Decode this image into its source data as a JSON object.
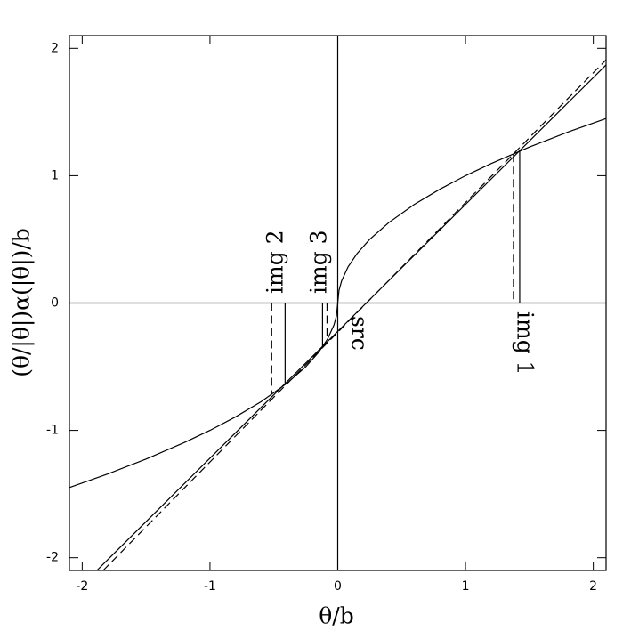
{
  "chart_data": {
    "type": "line",
    "xlabel": "θ/b",
    "ylabel": "(θ/|θ|)α(|θ|)/b",
    "xlim": [
      -2.1,
      2.1
    ],
    "ylim": [
      -2.1,
      2.1
    ],
    "xticks": [
      -2,
      -1,
      0,
      1,
      2
    ],
    "yticks": [
      -2,
      -1,
      0,
      1,
      2
    ],
    "color": "#000000",
    "lines": [
      {
        "style": "solid",
        "x": [
          -2.1,
          -1.8,
          -1.5,
          -1.2,
          -1.0,
          -0.8,
          -0.6,
          -0.4,
          -0.25,
          -0.15,
          -0.08,
          -0.03,
          -0.01,
          0,
          0.01,
          0.03,
          0.08,
          0.15,
          0.25,
          0.4,
          0.6,
          0.8,
          1.0,
          1.2,
          1.5,
          1.8,
          2.1
        ],
        "y": [
          -1.449,
          -1.342,
          -1.225,
          -1.095,
          -1.0,
          -0.894,
          -0.775,
          -0.632,
          -0.5,
          -0.387,
          -0.283,
          -0.173,
          -0.1,
          0,
          0.1,
          0.173,
          0.283,
          0.387,
          0.5,
          0.632,
          0.775,
          0.894,
          1.0,
          1.095,
          1.225,
          1.342,
          1.449
        ]
      },
      {
        "style": "solid",
        "x": [
          -1.885,
          2.1
        ],
        "y": [
          -2.1,
          1.87
        ]
      },
      {
        "style": "dashed",
        "x": [
          -1.836,
          2.1
        ],
        "y": [
          -2.1,
          1.91
        ]
      },
      {
        "style": "solid",
        "x": [
          -2.1,
          2.1
        ],
        "y": [
          0,
          0
        ]
      },
      {
        "style": "solid",
        "x": [
          0,
          0
        ],
        "y": [
          -2.1,
          2.1
        ]
      },
      {
        "style": "solid",
        "x": [
          1.424,
          1.424
        ],
        "y": [
          0,
          1.19
        ]
      },
      {
        "style": "dashed",
        "x": [
          1.375,
          1.375
        ],
        "y": [
          0.03,
          1.17
        ]
      },
      {
        "style": "solid",
        "x": [
          -0.412,
          -0.412
        ],
        "y": [
          0,
          -0.64
        ]
      },
      {
        "style": "dashed",
        "x": [
          -0.517,
          -0.517
        ],
        "y": [
          0,
          -0.72
        ]
      },
      {
        "style": "solid",
        "x": [
          -0.119,
          -0.119
        ],
        "y": [
          0,
          -0.34
        ]
      },
      {
        "style": "dashed",
        "x": [
          -0.084,
          -0.084
        ],
        "y": [
          0,
          -0.29
        ]
      }
    ],
    "annotations": [
      "img 1",
      "img 2",
      "img 3",
      "src"
    ]
  }
}
